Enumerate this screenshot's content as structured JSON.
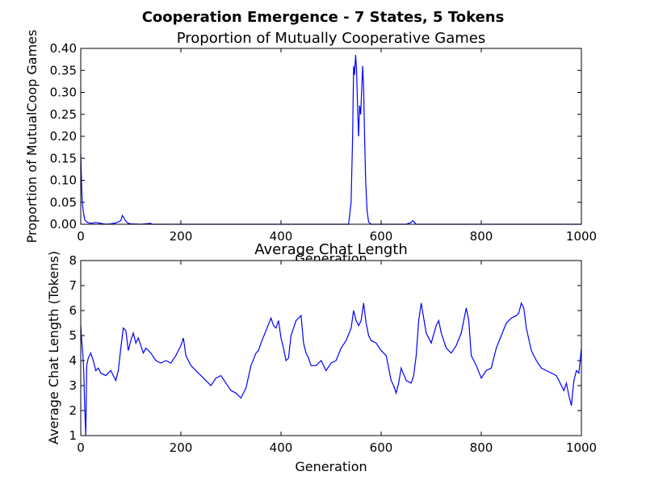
{
  "figure": {
    "title": "Cooperation Emergence - 7 States, 5 Tokens"
  },
  "chart_data": [
    {
      "type": "line",
      "title": "Proportion of Mutually Cooperative Games",
      "xlabel": "Generation",
      "ylabel": "Proportion of MutualCoop Games",
      "xlim": [
        0,
        1000
      ],
      "ylim": [
        0,
        0.4
      ],
      "x_ticks": [
        "0",
        "200",
        "400",
        "600",
        "800",
        "1000"
      ],
      "y_ticks": [
        "0.00",
        "0.05",
        "0.10",
        "0.15",
        "0.20",
        "0.25",
        "0.30",
        "0.35",
        "0.40"
      ],
      "grid": false,
      "line_color": "#0000ff",
      "series": [
        {
          "x": [
            0,
            1,
            2,
            3,
            5,
            8,
            12,
            20,
            30,
            40,
            50,
            60,
            70,
            80,
            83,
            86,
            88,
            92,
            95,
            100,
            120,
            140,
            142,
            150,
            200,
            300,
            400,
            500,
            535,
            540,
            543,
            545,
            547,
            549,
            551,
            553,
            555,
            557,
            559,
            561,
            563,
            565,
            567,
            569,
            572,
            575,
            580,
            600,
            650,
            660,
            663,
            666,
            670,
            700,
            800,
            900,
            1000
          ],
          "y": [
            0.16,
            0.12,
            0.08,
            0.05,
            0.03,
            0.01,
            0.005,
            0.002,
            0.004,
            0.002,
            0.0,
            0.001,
            0.003,
            0.008,
            0.02,
            0.015,
            0.01,
            0.005,
            0.002,
            0.001,
            0.0,
            0.002,
            0.0,
            0.0,
            0.0,
            0.0,
            0.0,
            0.0,
            0.0,
            0.05,
            0.2,
            0.36,
            0.34,
            0.385,
            0.35,
            0.26,
            0.2,
            0.27,
            0.25,
            0.3,
            0.36,
            0.31,
            0.2,
            0.1,
            0.03,
            0.005,
            0.0,
            0.0,
            0.0,
            0.004,
            0.008,
            0.005,
            0.0,
            0.0,
            0.0,
            0.0,
            0.0
          ]
        }
      ]
    },
    {
      "type": "line",
      "title": "Average Chat Length",
      "xlabel": "Generation",
      "ylabel": "Average Chat Length (Tokens)",
      "xlim": [
        0,
        1000
      ],
      "ylim": [
        1,
        8
      ],
      "x_ticks": [
        "0",
        "200",
        "400",
        "600",
        "800",
        "1000"
      ],
      "y_ticks": [
        "1",
        "2",
        "3",
        "4",
        "5",
        "6",
        "7",
        "8"
      ],
      "grid": false,
      "line_color": "#0000ff",
      "series": [
        {
          "x": [
            0,
            2,
            4,
            6,
            8,
            10,
            12,
            15,
            20,
            25,
            30,
            35,
            40,
            50,
            60,
            70,
            75,
            80,
            85,
            90,
            95,
            100,
            105,
            110,
            115,
            120,
            125,
            130,
            140,
            150,
            160,
            170,
            180,
            190,
            200,
            205,
            210,
            220,
            230,
            240,
            250,
            260,
            270,
            280,
            290,
            300,
            310,
            320,
            330,
            340,
            350,
            355,
            360,
            370,
            380,
            385,
            390,
            395,
            400,
            405,
            410,
            415,
            420,
            425,
            430,
            440,
            445,
            450,
            455,
            460,
            470,
            480,
            490,
            500,
            510,
            520,
            530,
            540,
            545,
            550,
            555,
            560,
            565,
            570,
            575,
            580,
            590,
            600,
            610,
            620,
            625,
            630,
            635,
            640,
            650,
            660,
            665,
            670,
            675,
            680,
            690,
            700,
            710,
            715,
            720,
            730,
            740,
            750,
            760,
            765,
            770,
            775,
            780,
            790,
            800,
            810,
            820,
            830,
            840,
            850,
            860,
            870,
            875,
            880,
            885,
            890,
            900,
            910,
            920,
            930,
            940,
            950,
            960,
            965,
            970,
            975,
            980,
            985,
            990,
            995,
            1000
          ],
          "y": [
            5.4,
            4.8,
            4.3,
            3.6,
            2.0,
            1.0,
            3.8,
            4.1,
            4.3,
            4.0,
            3.6,
            3.7,
            3.5,
            3.4,
            3.6,
            3.2,
            3.6,
            4.5,
            5.3,
            5.2,
            4.4,
            4.8,
            5.1,
            4.7,
            4.9,
            4.6,
            4.3,
            4.5,
            4.3,
            4.0,
            3.9,
            4.0,
            3.9,
            4.2,
            4.6,
            4.9,
            4.2,
            3.8,
            3.6,
            3.4,
            3.2,
            3.0,
            3.3,
            3.4,
            3.1,
            2.8,
            2.7,
            2.5,
            2.9,
            3.8,
            4.3,
            4.4,
            4.7,
            5.2,
            5.7,
            5.4,
            5.3,
            5.6,
            4.9,
            4.5,
            4.0,
            4.1,
            5.0,
            5.3,
            5.6,
            5.8,
            4.7,
            4.3,
            4.1,
            3.8,
            3.8,
            4.0,
            3.6,
            3.9,
            4.0,
            4.5,
            4.8,
            5.3,
            6.0,
            5.6,
            5.4,
            5.6,
            6.3,
            5.5,
            5.0,
            4.8,
            4.7,
            4.4,
            4.2,
            3.2,
            3.0,
            2.7,
            3.1,
            3.7,
            3.2,
            3.1,
            3.4,
            4.2,
            5.6,
            6.3,
            5.1,
            4.7,
            5.4,
            5.6,
            5.1,
            4.5,
            4.3,
            4.6,
            5.1,
            5.6,
            6.1,
            5.6,
            4.2,
            3.8,
            3.3,
            3.6,
            3.7,
            4.5,
            5.0,
            5.5,
            5.7,
            5.8,
            5.9,
            6.3,
            6.1,
            5.3,
            4.4,
            4.0,
            3.7,
            3.6,
            3.5,
            3.4,
            3.0,
            2.8,
            3.1,
            2.6,
            2.2,
            3.2,
            3.6,
            3.5,
            4.5
          ]
        }
      ]
    }
  ]
}
